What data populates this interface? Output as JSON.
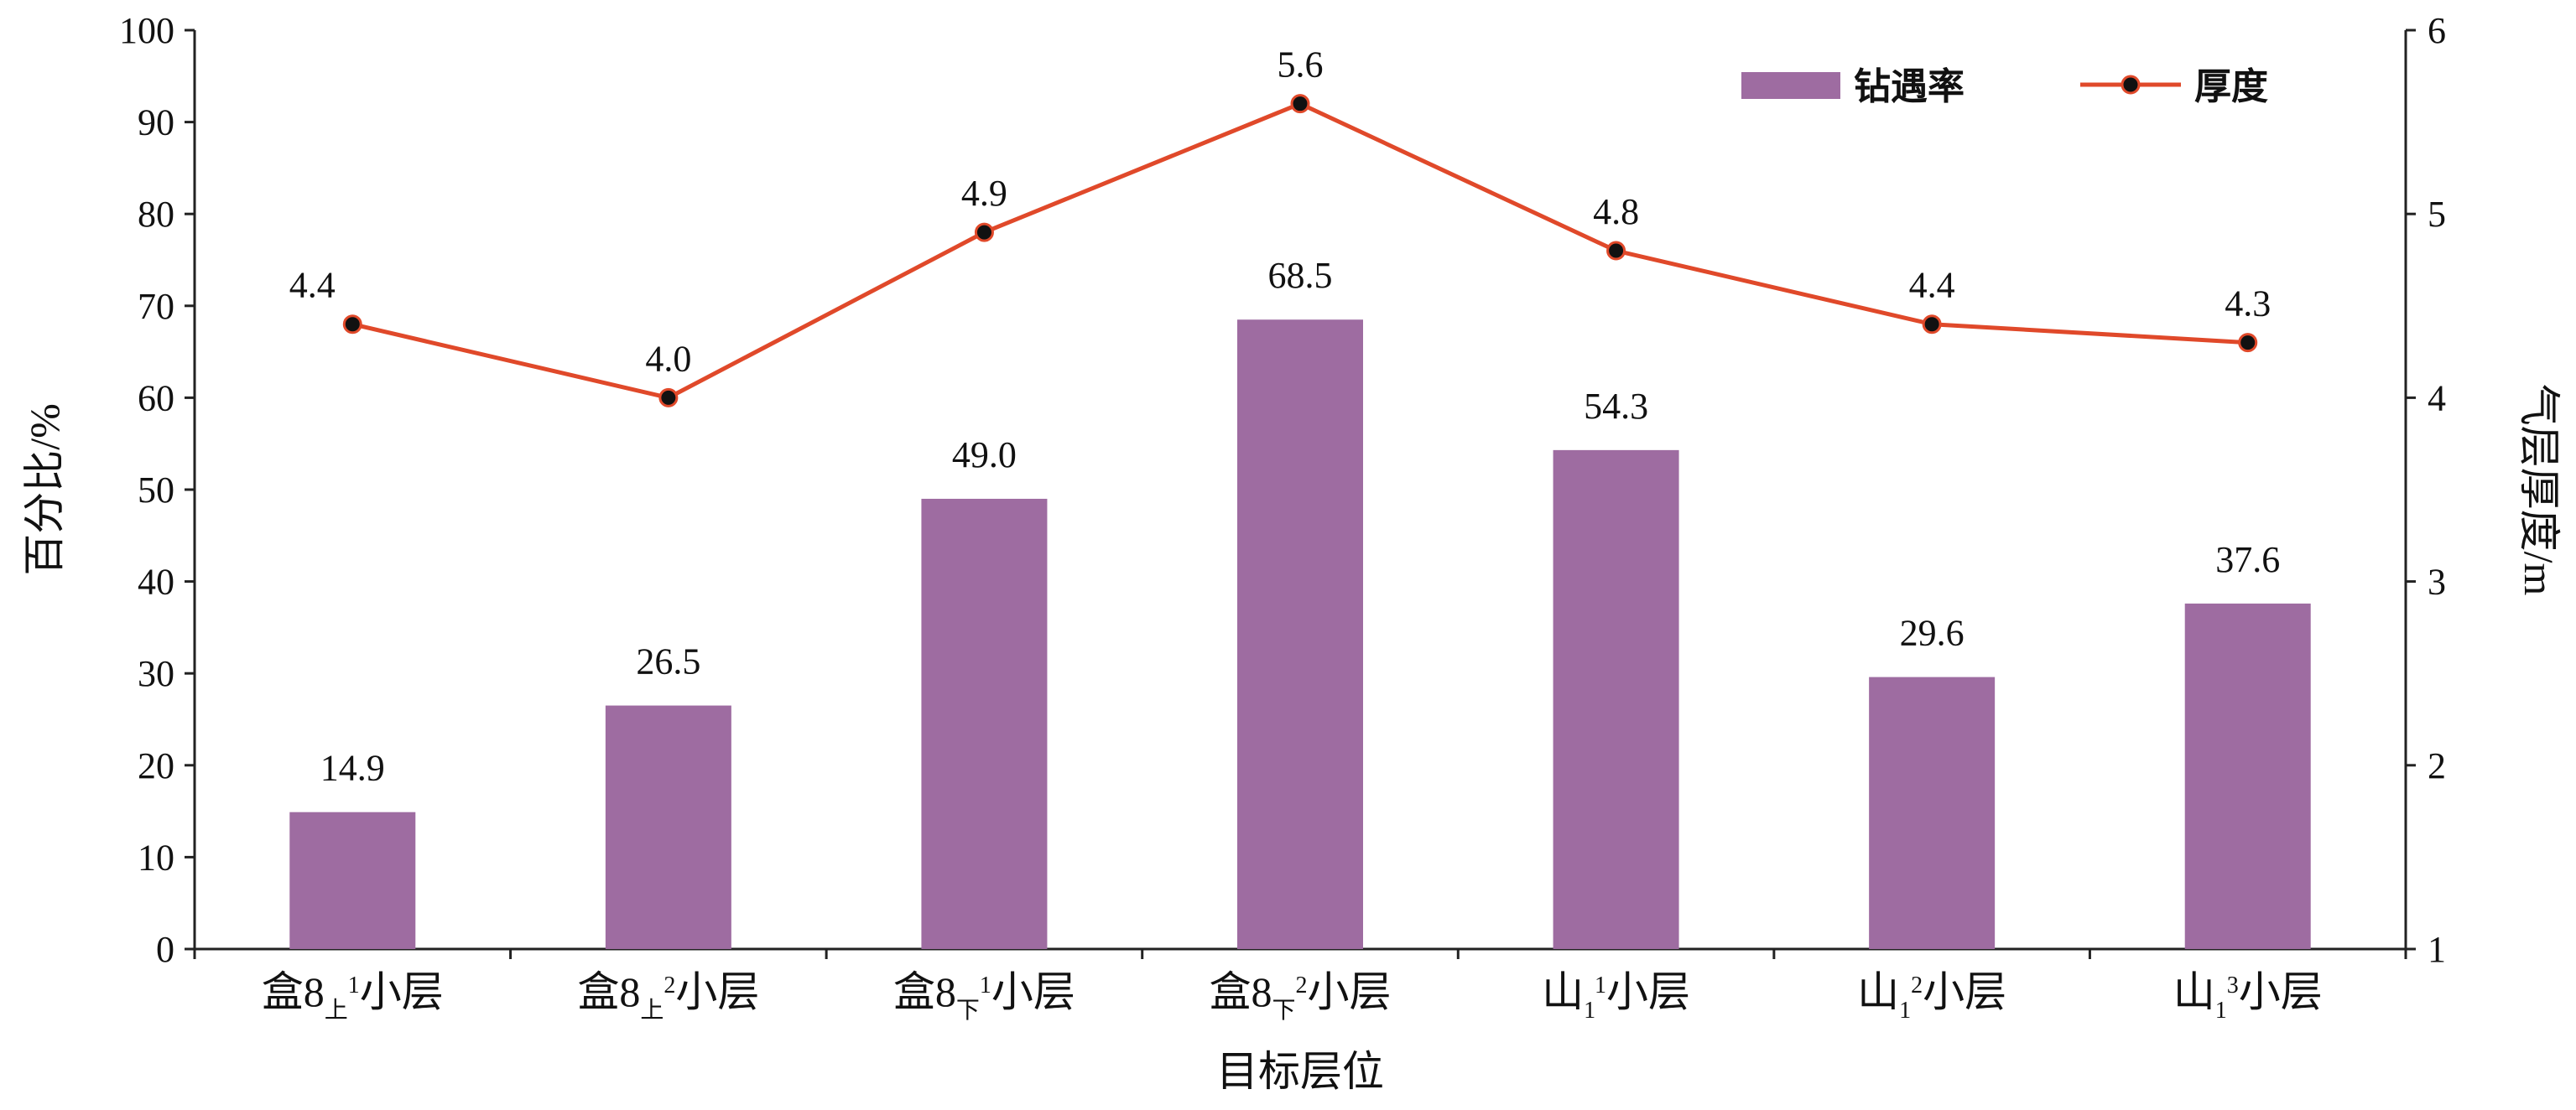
{
  "chart_data": {
    "type": "bar+line",
    "x_axis": {
      "title": "目标层位",
      "categories": [
        {
          "main": "盒8",
          "sub": "上",
          "sup": "1",
          "tail": "小层"
        },
        {
          "main": "盒8",
          "sub": "上",
          "sup": "2",
          "tail": "小层"
        },
        {
          "main": "盒8",
          "sub": "下",
          "sup": "1",
          "tail": "小层"
        },
        {
          "main": "盒8",
          "sub": "下",
          "sup": "2",
          "tail": "小层"
        },
        {
          "main": "山",
          "sub": "1",
          "sup": "1",
          "tail": "小层"
        },
        {
          "main": "山",
          "sub": "1",
          "sup": "2",
          "tail": "小层"
        },
        {
          "main": "山",
          "sub": "1",
          "sup": "3",
          "tail": "小层"
        }
      ]
    },
    "y_left": {
      "title": "百分比/%",
      "min": 0,
      "max": 100,
      "step": 10,
      "ticks": [
        "0",
        "10",
        "20",
        "30",
        "40",
        "50",
        "60",
        "70",
        "80",
        "90",
        "100"
      ]
    },
    "y_right": {
      "title": "气层厚度/m",
      "min": 1,
      "max": 6,
      "step": 1,
      "ticks": [
        "1",
        "2",
        "3",
        "4",
        "5",
        "6"
      ]
    },
    "series": [
      {
        "name": "钻遇率",
        "type": "bar",
        "axis": "left",
        "color": "#9e6ca1",
        "values": [
          14.9,
          26.5,
          49.0,
          68.5,
          54.3,
          29.6,
          37.6
        ],
        "labels": [
          "14.9",
          "26.5",
          "49.0",
          "68.5",
          "54.3",
          "29.6",
          "37.6"
        ]
      },
      {
        "name": "厚度",
        "type": "line",
        "axis": "right",
        "color": "#e0492a",
        "marker_color": "#111111",
        "values": [
          4.4,
          4.0,
          4.9,
          5.6,
          4.8,
          4.4,
          4.3
        ],
        "labels": [
          "4.4",
          "4.0",
          "4.9",
          "5.6",
          "4.8",
          "4.4",
          "4.3"
        ]
      }
    ],
    "legend": {
      "position": "top-right",
      "bar_label": "钻遇率",
      "line_label": "厚度"
    },
    "grid": false
  }
}
